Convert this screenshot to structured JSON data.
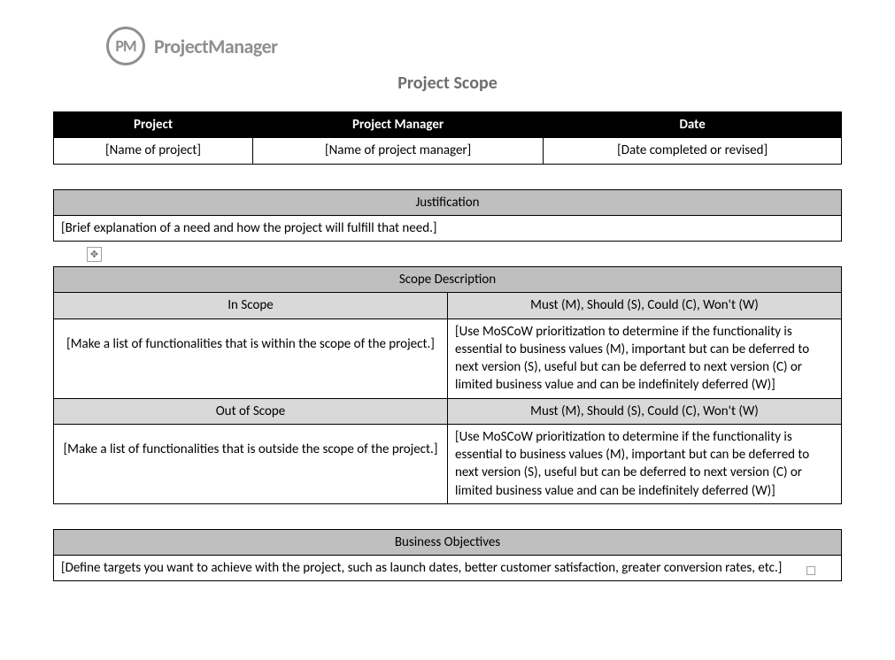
{
  "logo": {
    "badge": "PM",
    "text": "ProjectManager"
  },
  "title": "Project Scope",
  "header_table": {
    "headers": [
      "Project",
      "Project Manager",
      "Date"
    ],
    "values": [
      "[Name of project]",
      "[Name of project manager]",
      "[Date completed or revised]"
    ]
  },
  "justification": {
    "title": "Justification",
    "content": "[Brief explanation of a need and how the project will fulfill that need.]"
  },
  "scope": {
    "title": "Scope Description",
    "in_scope_label": "In Scope",
    "out_scope_label": "Out of Scope",
    "moscow_label": "Must (M), Should (S), Could (C), Won't (W)",
    "in_scope_text": "[Make a list of functionalities that is within the scope of the project.]",
    "out_scope_text": "[Make a list of functionalities that is outside the scope of the project.]",
    "moscow_text": "[Use MoSCoW prioritization to determine if the functionality is essential to business values (M), important but can be deferred to next version (S), useful but can be deferred to next version (C) or limited business value and can be indefinitely deferred (W)]"
  },
  "objectives": {
    "title": "Business Objectives",
    "content": "[Define targets you want to achieve with the project, such as launch dates, better customer satisfaction, greater conversion rates, etc.]"
  },
  "colors": {
    "header_black_bg": "#000000",
    "header_black_fg": "#ffffff",
    "header_grey_bg": "#bfbfbf",
    "header_lightgrey_bg": "#d9d9d9",
    "title_color": "#6e6e6e",
    "logo_color": "#8f8f8f",
    "border": "#000000"
  }
}
